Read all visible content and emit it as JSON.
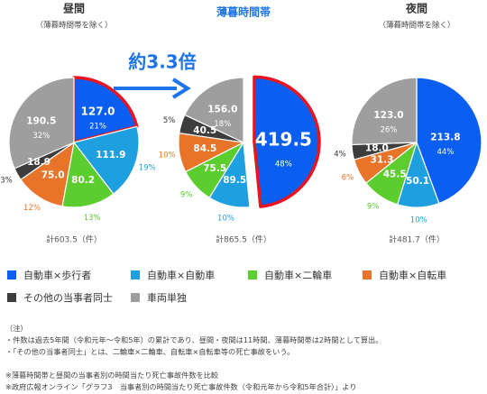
{
  "colors": {
    "walker": "#0a5ff0",
    "car": "#1e9fdf",
    "motorcycle": "#5ccd2e",
    "bicycle": "#e8742a",
    "other": "#3d3d3d",
    "single": "#9e9e9e",
    "highlight_border": "#e8141f",
    "accent_text": "#1d74e8",
    "label_dark": "#333333"
  },
  "headline": {
    "ratio_text": "約3.3倍"
  },
  "chart_data": [
    {
      "type": "pie",
      "title": "昼間",
      "subtitle": "（薄暮時間帯を除く）",
      "total_label": "計603.5（件）",
      "categories": [
        "自動車×歩行者",
        "自動車×自動車",
        "自動車×二輪車",
        "自動車×自転車",
        "その他の当事者同士",
        "車両単独"
      ],
      "values": [
        127.0,
        111.9,
        80.2,
        75.0,
        18.9,
        190.5
      ],
      "value_labels": [
        "127.0",
        "111.9",
        "80.2",
        "75.0",
        "18.9",
        "190.5"
      ],
      "percent_labels": [
        "21%",
        "19%",
        "13%",
        "12%",
        "3%",
        "32%"
      ],
      "highlight": "自動車×歩行者"
    },
    {
      "type": "pie",
      "title": "薄暮時間帯",
      "subtitle": "",
      "total_label": "計865.5（件）",
      "categories": [
        "自動車×歩行者",
        "自動車×自動車",
        "自動車×二輪車",
        "自動車×自転車",
        "その他の当事者同士",
        "車両単独"
      ],
      "values": [
        419.5,
        89.5,
        75.5,
        84.5,
        40.5,
        156.0
      ],
      "value_labels": [
        "419.5",
        "89.5",
        "75.5",
        "84.5",
        "40.5",
        "156.0"
      ],
      "percent_labels": [
        "48%",
        "10%",
        "9%",
        "10%",
        "5%",
        "18%"
      ],
      "highlight": "自動車×歩行者"
    },
    {
      "type": "pie",
      "title": "夜間",
      "subtitle": "（薄暮時間帯を除く）",
      "total_label": "計481.7（件）",
      "categories": [
        "自動車×歩行者",
        "自動車×自動車",
        "自動車×二輪車",
        "自動車×自転車",
        "その他の当事者同士",
        "車両単独"
      ],
      "values": [
        213.8,
        50.1,
        45.5,
        31.3,
        18.0,
        123.0
      ],
      "value_labels": [
        "213.8",
        "50.1",
        "45.5",
        "31.3",
        "18.0",
        "123.0"
      ],
      "percent_labels": [
        "44%",
        "10%",
        "9%",
        "6%",
        "4%",
        "26%"
      ],
      "highlight": ""
    }
  ],
  "legend": [
    {
      "label": "自動車×歩行者",
      "color": "#0a5ff0"
    },
    {
      "label": "自動車×自動車",
      "color": "#1e9fdf"
    },
    {
      "label": "自動車×二輪車",
      "color": "#5ccd2e"
    },
    {
      "label": "自動車×自転車",
      "color": "#e8742a"
    },
    {
      "label": "その他の当事者同士",
      "color": "#3d3d3d"
    },
    {
      "label": "車両単独",
      "color": "#9e9e9e"
    }
  ],
  "notes": [
    "（注）",
    "・件数は過去5年間（令和元年～令和5年）の累計であり、昼間・夜間は11時間、薄暮時間帯は2時間として算出。",
    "・「その他の当事者同士」とは、二輪車×二輪車、自転車×自転車等の死亡事故をいう。",
    "",
    "※薄暮時間帯と昼間の当事者別の時間当たり死亡事故件数を比較",
    "※政府広報オンライン「グラフ3　当事者別の時間当たり死亡事故件数（令和元年から令和5年合計）」より"
  ]
}
